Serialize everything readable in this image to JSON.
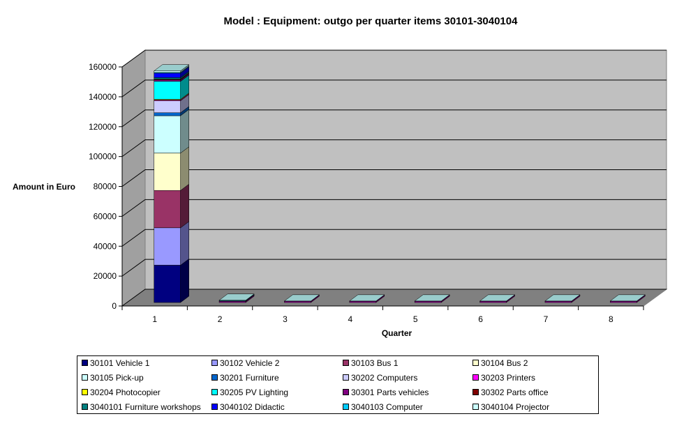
{
  "chart_data": {
    "type": "bar",
    "stacked": true,
    "three_d": true,
    "title": "Model : Equipment: outgo per quarter items 30101-3040104",
    "ylabel": "Amount in Euro",
    "xlabel": "Quarter",
    "categories": [
      "1",
      "2",
      "3",
      "4",
      "5",
      "6",
      "7",
      "8"
    ],
    "ylim": [
      0,
      160000
    ],
    "yticks": [
      0,
      20000,
      40000,
      60000,
      80000,
      100000,
      120000,
      140000,
      160000
    ],
    "grid": true,
    "legend_position": "bottom",
    "series": [
      {
        "name": "30101 Vehicle 1",
        "color": "#000080",
        "values": [
          25000,
          0,
          0,
          0,
          0,
          0,
          0,
          0
        ]
      },
      {
        "name": "30102 Vehicle 2",
        "color": "#9999FF",
        "values": [
          25000,
          0,
          0,
          0,
          0,
          0,
          0,
          0
        ]
      },
      {
        "name": "30103 Bus 1",
        "color": "#993366",
        "values": [
          25000,
          0,
          0,
          0,
          0,
          0,
          0,
          0
        ]
      },
      {
        "name": "30104 Bus 2",
        "color": "#FFFFCC",
        "values": [
          25000,
          0,
          0,
          0,
          0,
          0,
          0,
          0
        ]
      },
      {
        "name": "30105 Pick-up",
        "color": "#CCFFFF",
        "values": [
          25000,
          0,
          0,
          0,
          0,
          0,
          0,
          0
        ]
      },
      {
        "name": "30201 Furniture",
        "color": "#0066CC",
        "values": [
          2000,
          0,
          0,
          0,
          0,
          0,
          0,
          0
        ]
      },
      {
        "name": "30202 Computers",
        "color": "#CCCCFF",
        "values": [
          8000,
          0,
          0,
          0,
          0,
          0,
          0,
          0
        ]
      },
      {
        "name": "30203 Printers",
        "color": "#FF00FF",
        "values": [
          500,
          500,
          500,
          500,
          500,
          500,
          500,
          500
        ]
      },
      {
        "name": "30204 Photocopier",
        "color": "#FFFF00",
        "values": [
          500,
          0,
          0,
          0,
          0,
          0,
          0,
          0
        ]
      },
      {
        "name": "30205 PV Lighting",
        "color": "#00FFFF",
        "values": [
          12000,
          0,
          0,
          0,
          0,
          0,
          0,
          0
        ]
      },
      {
        "name": "30301 Parts vehicles",
        "color": "#800080",
        "values": [
          1000,
          500,
          500,
          500,
          500,
          500,
          500,
          500
        ]
      },
      {
        "name": "30302 Parts office",
        "color": "#800000",
        "values": [
          500,
          0,
          0,
          0,
          0,
          0,
          0,
          0
        ]
      },
      {
        "name": "3040101 Furniture workshops",
        "color": "#008080",
        "values": [
          1000,
          500,
          0,
          0,
          0,
          0,
          0,
          0
        ]
      },
      {
        "name": "3040102 Didactic",
        "color": "#0000FF",
        "values": [
          3000,
          0,
          0,
          0,
          0,
          0,
          0,
          0
        ]
      },
      {
        "name": "3040103 Computer",
        "color": "#00CCFF",
        "values": [
          500,
          0,
          0,
          0,
          0,
          0,
          0,
          0
        ]
      },
      {
        "name": "3040104 Projector",
        "color": "#CCFFFF",
        "values": [
          1000,
          0,
          0,
          0,
          0,
          0,
          0,
          0
        ]
      }
    ]
  }
}
